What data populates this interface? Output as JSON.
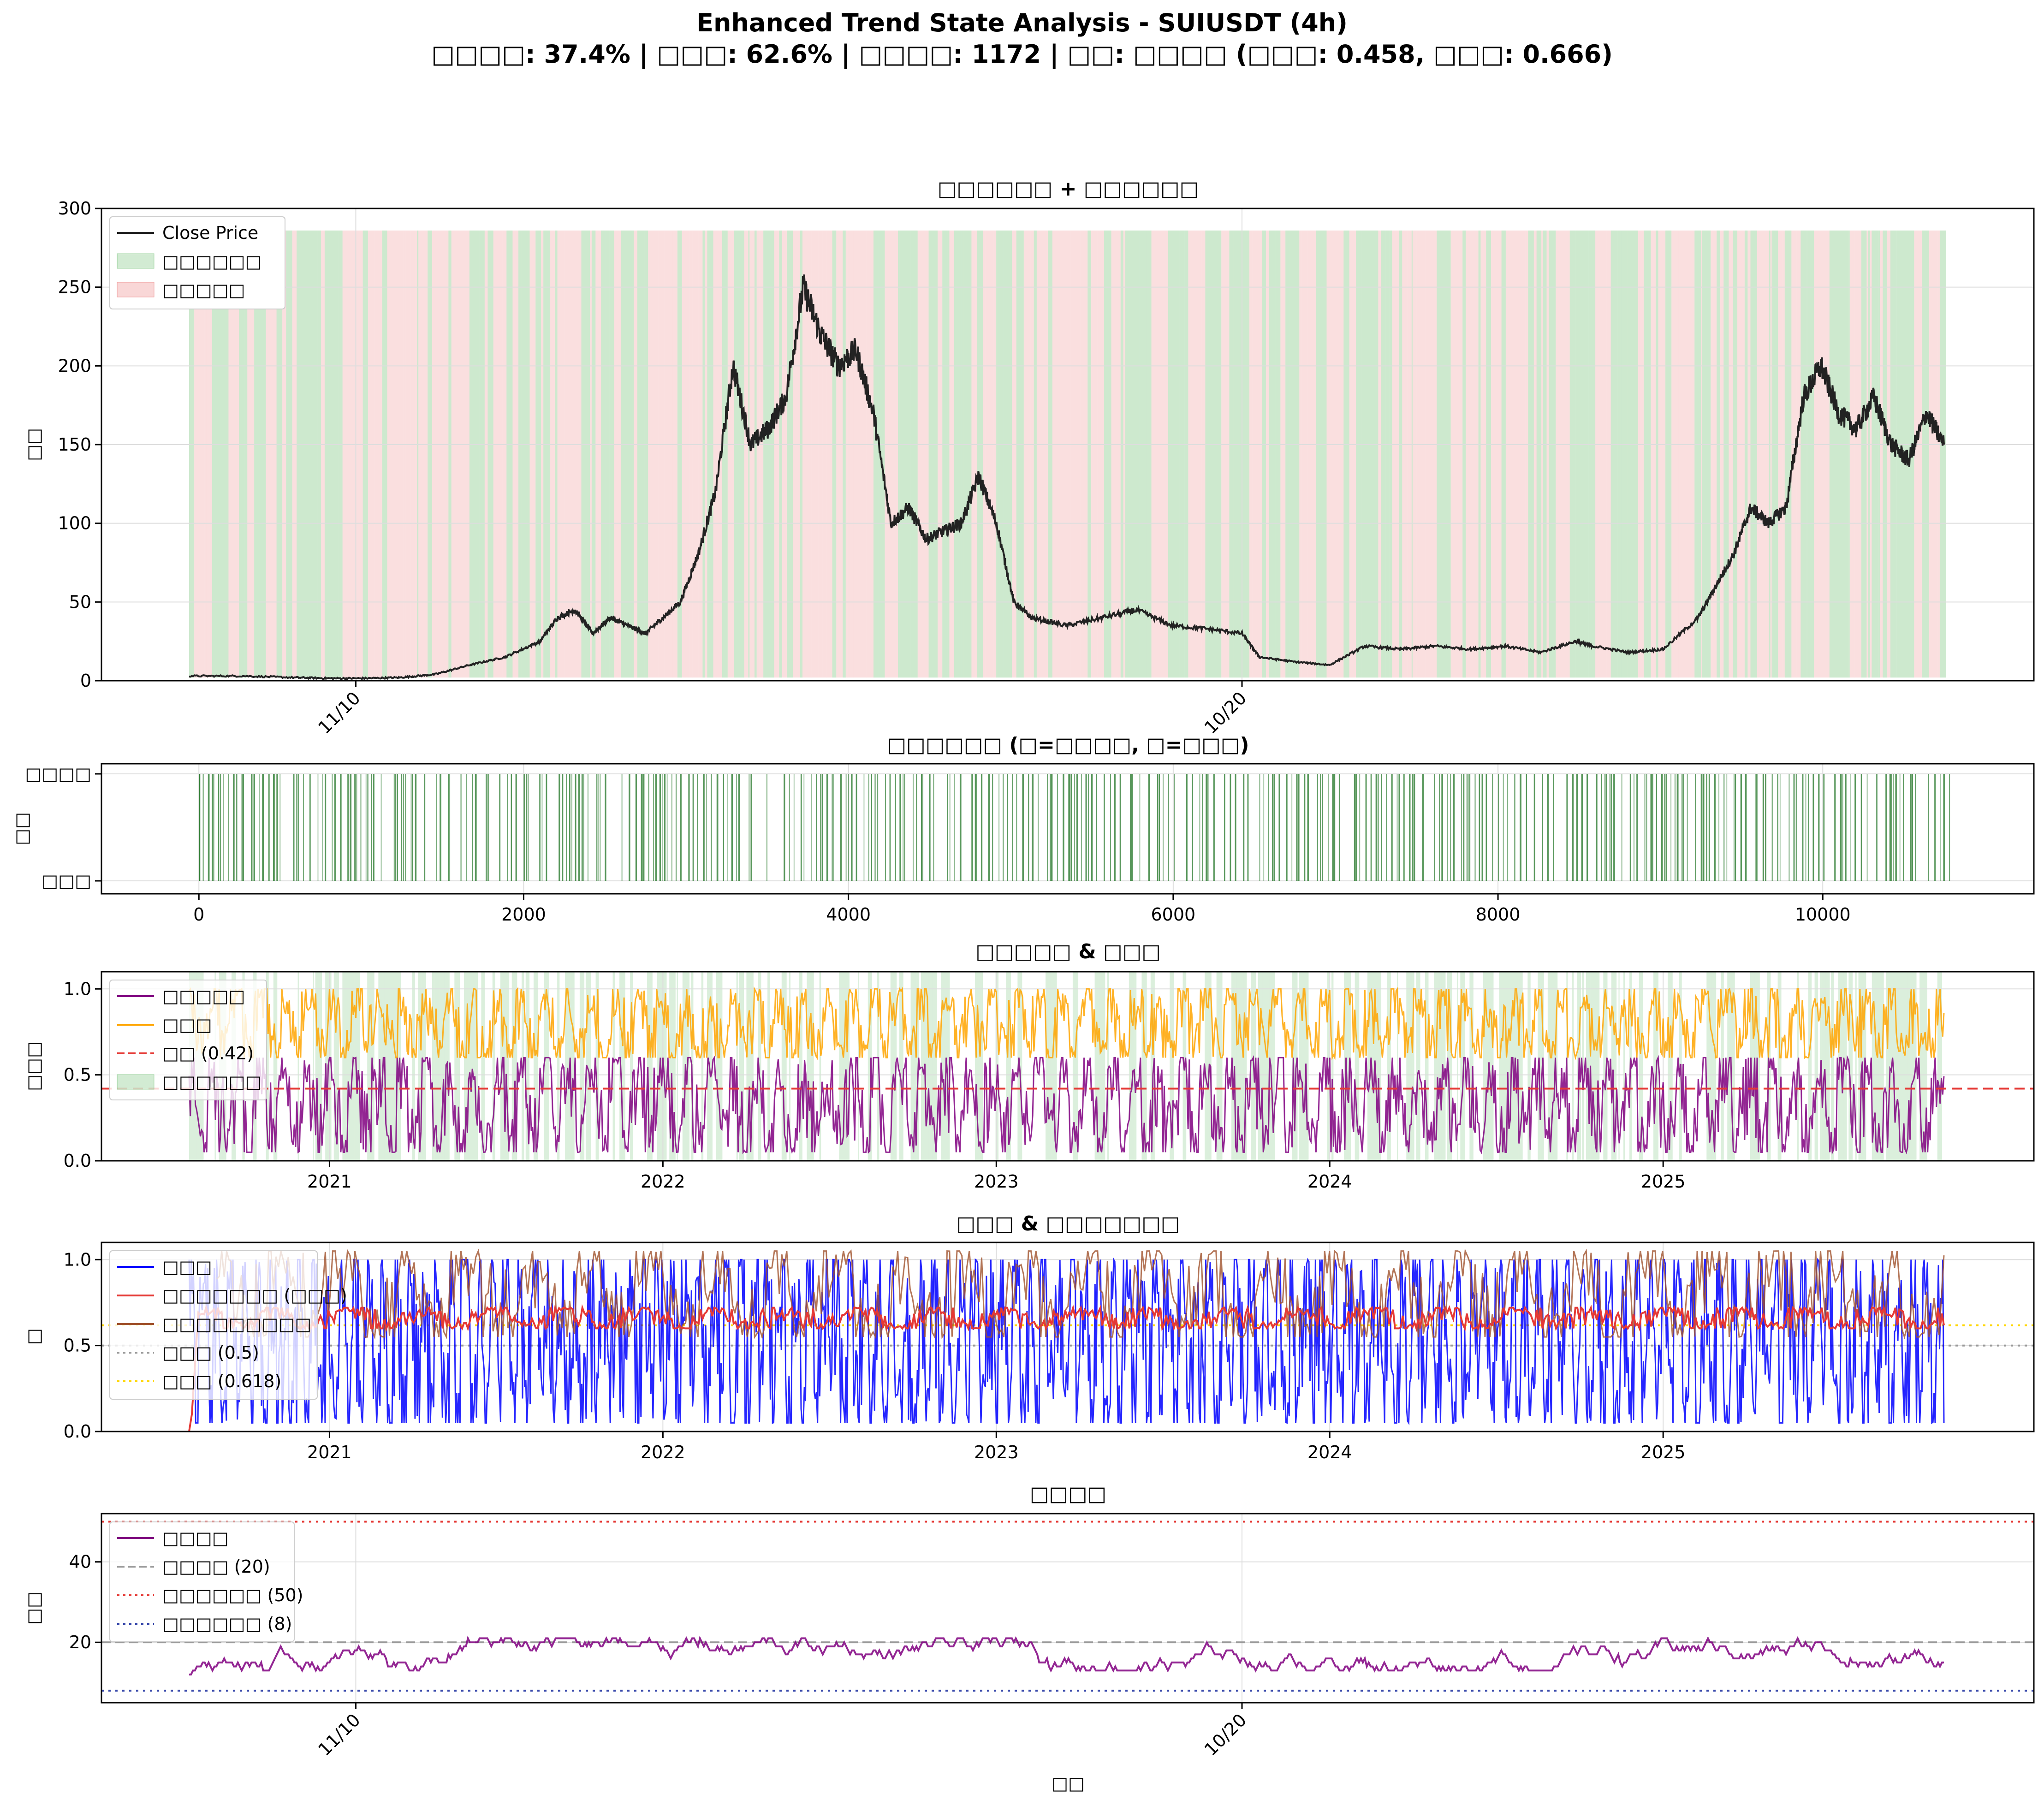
{
  "figure": {
    "title_line1": "Enhanced Trend State Analysis - SUIUSDT (4h)",
    "title_line2": "□□□□: 37.4% | □□□: 62.6% | □□□□: 1172 | □□: □□□□ (□□□: 0.458, □□□: 0.666)"
  },
  "colors": {
    "price": "#222222",
    "green_fill": "#4caf50",
    "red_fill": "#ef9a9a",
    "purple": "#800080",
    "orange": "#ffa500",
    "red_line": "#e53935",
    "blue": "#0000ff",
    "brown": "#a0522d",
    "gray": "#999999",
    "gold": "#ffd700"
  },
  "chart_data": [
    {
      "id": "price",
      "type": "line",
      "title": "□□□□□□ + □□□□□□",
      "ylabel": "□□",
      "ylim": [
        0,
        300
      ],
      "yticks": [
        0,
        50,
        100,
        150,
        200,
        250,
        300
      ],
      "xticks": [
        {
          "label": "11/10",
          "pos": 0.095
        },
        {
          "label": "10/20",
          "pos": 0.6
        }
      ],
      "legend": {
        "placement": "upper-left",
        "entries": [
          "Close Price",
          "□□□□□□",
          "□□□□□"
        ]
      },
      "grid": true,
      "series": [
        {
          "name": "Close Price",
          "points": [
            [
              0,
              3
            ],
            [
              0.03,
              3
            ],
            [
              0.06,
              2
            ],
            [
              0.08,
              1.5
            ],
            [
              0.1,
              1.5
            ],
            [
              0.12,
              2
            ],
            [
              0.14,
              4
            ],
            [
              0.16,
              10
            ],
            [
              0.18,
              15
            ],
            [
              0.2,
              25
            ],
            [
              0.21,
              40
            ],
            [
              0.22,
              45
            ],
            [
              0.23,
              30
            ],
            [
              0.24,
              40
            ],
            [
              0.25,
              35
            ],
            [
              0.26,
              30
            ],
            [
              0.27,
              40
            ],
            [
              0.28,
              50
            ],
            [
              0.29,
              80
            ],
            [
              0.3,
              120
            ],
            [
              0.31,
              200
            ],
            [
              0.32,
              150
            ],
            [
              0.33,
              160
            ],
            [
              0.34,
              180
            ],
            [
              0.35,
              250
            ],
            [
              0.36,
              220
            ],
            [
              0.37,
              200
            ],
            [
              0.38,
              210
            ],
            [
              0.39,
              170
            ],
            [
              0.4,
              100
            ],
            [
              0.41,
              110
            ],
            [
              0.42,
              90
            ],
            [
              0.43,
              95
            ],
            [
              0.44,
              100
            ],
            [
              0.45,
              130
            ],
            [
              0.46,
              100
            ],
            [
              0.47,
              50
            ],
            [
              0.48,
              40
            ],
            [
              0.5,
              35
            ],
            [
              0.52,
              40
            ],
            [
              0.54,
              45
            ],
            [
              0.56,
              35
            ],
            [
              0.58,
              33
            ],
            [
              0.6,
              30
            ],
            [
              0.61,
              15
            ],
            [
              0.63,
              12
            ],
            [
              0.65,
              10
            ],
            [
              0.67,
              22
            ],
            [
              0.69,
              20
            ],
            [
              0.71,
              22
            ],
            [
              0.73,
              20
            ],
            [
              0.75,
              22
            ],
            [
              0.77,
              18
            ],
            [
              0.79,
              25
            ],
            [
              0.8,
              22
            ],
            [
              0.82,
              18
            ],
            [
              0.84,
              20
            ],
            [
              0.86,
              40
            ],
            [
              0.87,
              60
            ],
            [
              0.88,
              80
            ],
            [
              0.89,
              110
            ],
            [
              0.9,
              100
            ],
            [
              0.91,
              110
            ],
            [
              0.92,
              180
            ],
            [
              0.93,
              200
            ],
            [
              0.94,
              170
            ],
            [
              0.95,
              160
            ],
            [
              0.96,
              180
            ],
            [
              0.97,
              150
            ],
            [
              0.98,
              140
            ],
            [
              0.99,
              170
            ],
            [
              1.0,
              150
            ]
          ]
        }
      ]
    },
    {
      "id": "state",
      "type": "bar",
      "title": "□□□□□□ (□=□□□□, □=□□□)",
      "ylabel": "□□",
      "ycategories": [
        "□□□",
        "□□□□"
      ],
      "xlim": [
        -600,
        11300
      ],
      "xticks": [
        0,
        2000,
        4000,
        6000,
        8000,
        10000
      ],
      "xmax_index": 10764,
      "trend_fraction": 0.374
    },
    {
      "id": "consistency",
      "type": "line",
      "title": "□□□□□ & □□□",
      "ylabel": "□□□",
      "ylim": [
        0,
        1.1
      ],
      "yticks": [
        0.0,
        0.5,
        1.0
      ],
      "xticks": [
        {
          "label": "2021",
          "pos": 0.08
        },
        {
          "label": "2022",
          "pos": 0.27
        },
        {
          "label": "2023",
          "pos": 0.46
        },
        {
          "label": "2024",
          "pos": 0.65
        },
        {
          "label": "2025",
          "pos": 0.84
        }
      ],
      "legend": {
        "placement": "upper-left",
        "entries": [
          "□□□□□",
          "□□□",
          "□□ (0.42)",
          "□□□□□□"
        ]
      },
      "threshold": 0.42,
      "series": [
        {
          "name": "□□□□□",
          "band": [
            0.05,
            0.6
          ]
        },
        {
          "name": "□□□",
          "band": [
            0.6,
            1.0
          ]
        }
      ]
    },
    {
      "id": "hurst",
      "type": "line",
      "title": "□□□ & □□□□□□□",
      "ylabel": "□",
      "ylim": [
        0,
        1.1
      ],
      "yticks": [
        0.0,
        0.5,
        1.0
      ],
      "xticks": [
        {
          "label": "2021",
          "pos": 0.08
        },
        {
          "label": "2022",
          "pos": 0.27
        },
        {
          "label": "2023",
          "pos": 0.46
        },
        {
          "label": "2024",
          "pos": 0.65
        },
        {
          "label": "2025",
          "pos": 0.84
        }
      ],
      "legend": {
        "placement": "upper-left",
        "entries": [
          "□□□",
          "□□□□□□□ (□□□)",
          "□□□□□□□□□",
          "□□□ (0.5)",
          "□□□ (0.618)"
        ]
      },
      "ref_lines": [
        0.5,
        0.618
      ],
      "series": [
        {
          "name": "□□□",
          "band": [
            0.05,
            1.0
          ]
        },
        {
          "name": "□□□□□□□ (□□□)",
          "band": [
            0.6,
            0.72
          ]
        },
        {
          "name": "□□□□□□□□□",
          "band": [
            0.55,
            1.05
          ]
        }
      ]
    },
    {
      "id": "window",
      "type": "line",
      "title": "□□□□",
      "xlabel": "□□",
      "ylabel": "□□",
      "ylim": [
        5,
        52
      ],
      "yticks": [
        20,
        40
      ],
      "xticks": [
        {
          "label": "11/10",
          "pos": 0.095
        },
        {
          "label": "10/20",
          "pos": 0.6
        }
      ],
      "legend": {
        "placement": "upper-left",
        "entries": [
          "□□□□",
          "□□□□ (20)",
          "□□□□□□ (50)",
          "□□□□□□ (8)"
        ]
      },
      "ref_lines": [
        20,
        50,
        8
      ],
      "series": [
        {
          "name": "□□□□",
          "band": [
            12,
            21
          ]
        }
      ]
    }
  ]
}
